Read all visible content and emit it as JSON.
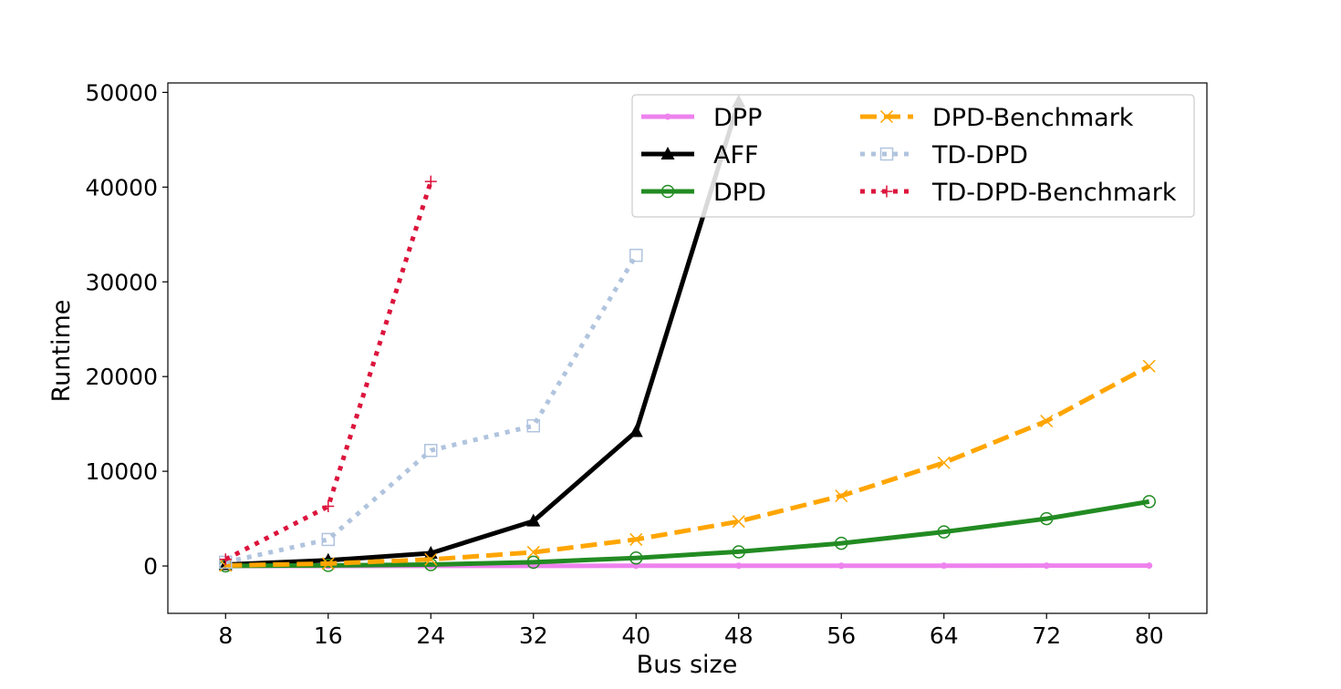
{
  "chart_data": {
    "type": "line",
    "title": "",
    "xlabel": "Bus size",
    "ylabel": "Runtime",
    "x": [
      8,
      16,
      24,
      32,
      40,
      48,
      56,
      64,
      72,
      80
    ],
    "x_ticks": [
      8,
      16,
      24,
      32,
      40,
      48,
      56,
      64,
      72,
      80
    ],
    "y_ticks": [
      0,
      10000,
      20000,
      30000,
      40000,
      50000
    ],
    "xlim": [
      3.5,
      84.5
    ],
    "ylim": [
      -5000,
      51000
    ],
    "grid": false,
    "legend": {
      "placement": "top-right",
      "columns": 2
    },
    "series": [
      {
        "name": "DPP",
        "color": "#ee82ee",
        "line_style": "solid",
        "marker": "dot",
        "x": [
          8,
          16,
          24,
          32,
          40,
          48,
          56,
          64,
          72,
          80
        ],
        "values": [
          2,
          5,
          10,
          15,
          20,
          25,
          30,
          35,
          40,
          45
        ]
      },
      {
        "name": "AFF",
        "color": "#000000",
        "line_style": "solid",
        "marker": "triangle",
        "x": [
          8,
          16,
          24,
          32,
          40,
          48
        ],
        "values": [
          150,
          600,
          1350,
          4750,
          14200,
          49000
        ]
      },
      {
        "name": "DPD",
        "color": "#228b22",
        "line_style": "solid",
        "marker": "circle-open",
        "x": [
          8,
          16,
          24,
          32,
          40,
          48,
          56,
          64,
          72,
          80
        ],
        "values": [
          10,
          60,
          150,
          400,
          850,
          1500,
          2400,
          3600,
          5000,
          6800
        ]
      },
      {
        "name": "DPD-Benchmark",
        "color": "#ffa500",
        "line_style": "dashed",
        "marker": "x",
        "x": [
          8,
          16,
          24,
          32,
          40,
          48,
          56,
          64,
          72,
          80
        ],
        "values": [
          50,
          250,
          700,
          1450,
          2800,
          4700,
          7400,
          10900,
          15300,
          21100
        ]
      },
      {
        "name": "TD-DPD",
        "color": "#b0c4de",
        "line_style": "dotted",
        "marker": "square-open",
        "x": [
          8,
          16,
          24,
          32,
          40
        ],
        "values": [
          400,
          2800,
          12200,
          14800,
          32800
        ]
      },
      {
        "name": "TD-DPD-Benchmark",
        "color": "#dc143c",
        "line_style": "dotted",
        "marker": "plus",
        "x": [
          8,
          16,
          24
        ],
        "values": [
          700,
          6300,
          40600
        ]
      }
    ]
  }
}
